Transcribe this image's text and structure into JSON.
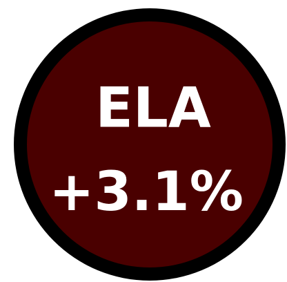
{
  "badge": {
    "label": "ELA",
    "value": "+3.1%"
  }
}
